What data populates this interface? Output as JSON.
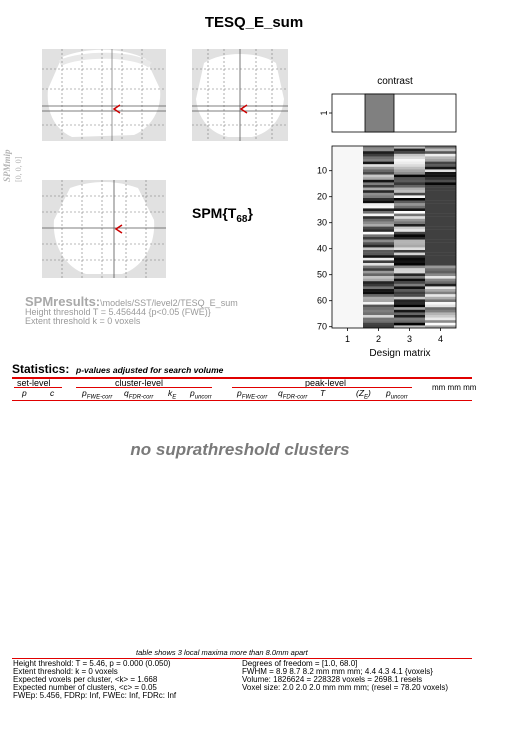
{
  "title": "TESQ_E_sum",
  "mip": {
    "label_top": "SPMmip",
    "label_bottom": "[0, 0, 0]",
    "stat_label": "SPM{T",
    "stat_df": "68",
    "stat_close": "}"
  },
  "results": {
    "header": "SPMresults:",
    "path": "\\models/SST/level2/TESQ_E_sum",
    "height_line": "Height threshold T = 5.456444  {p<0.05 (FWE)}",
    "extent_line": "Extent threshold k = 0 voxels"
  },
  "contrast": {
    "title": "contrast",
    "ytick": "1",
    "values": [
      0,
      1,
      0,
      0
    ]
  },
  "design_matrix": {
    "xlabel": "Design matrix",
    "xticks": [
      "1",
      "2",
      "3",
      "4"
    ],
    "yticks": [
      "10",
      "20",
      "30",
      "40",
      "50",
      "60",
      "70"
    ],
    "rows": 70
  },
  "statistics": {
    "title": "Statistics:",
    "subtitle": "p-values adjusted for search volume",
    "set_level": "set-level",
    "cluster_level": "cluster-level",
    "peak_level": "peak-level",
    "mm": "mm mm mm",
    "cols": {
      "set_p": "p",
      "set_c": "c",
      "cl_pfwe": "p",
      "cl_pfwe_sub": "FWE-corr",
      "cl_qfdr": "q",
      "cl_qfdr_sub": "FDR-corr",
      "cl_ke": "k",
      "cl_ke_sub": "E",
      "cl_punc": "p",
      "cl_punc_sub": "uncorr",
      "pk_pfwe": "p",
      "pk_pfwe_sub": "FWE-corr",
      "pk_qfdr": "q",
      "pk_qfdr_sub": "FDR-corr",
      "pk_t": "T",
      "pk_ze": "(Z",
      "pk_ze_sub": "E",
      "pk_ze_close": ")",
      "pk_punc": "p",
      "pk_punc_sub": "uncorr"
    },
    "message": "no suprathreshold clusters"
  },
  "footer": {
    "note": "table shows 3 local maxima more than 8.0mm apart",
    "left": [
      "Height threshold: T = 5.46, p = 0.000 (0.050)",
      "Extent threshold: k = 0 voxels",
      "Expected voxels per cluster, <k> = 1.668",
      "Expected number of clusters, <c> = 0.05",
      "FWEp: 5.456, FDRp: Inf, FWEc: Inf, FDRc: Inf"
    ],
    "right": [
      "Degrees of freedom = [1.0, 68.0]",
      "FWHM = 8.9 8.7 8.2 mm mm mm; 4.4 4.3 4.1 {voxels}",
      "Volume: 1826624 = 228328 voxels = 2698.1 resels",
      "Voxel size: 2.0 2.0 2.0 mm mm mm; (resel = 78.20 voxels)"
    ]
  },
  "colors": {
    "accent_red": "#e00000",
    "mip_grey": "#e1e1e1",
    "bar_grey": "#808080",
    "cursor": "#cc0000"
  }
}
